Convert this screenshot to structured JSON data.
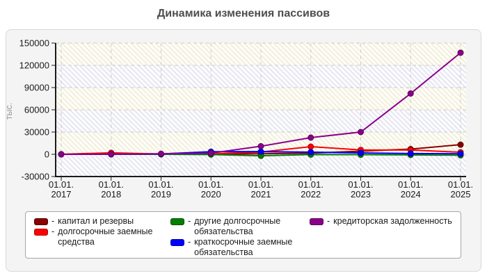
{
  "title": "Динамика изменения пассивов",
  "ui": {
    "legend_dash": "-"
  },
  "chart_data": {
    "type": "line",
    "title": "Динамика изменения пассивов",
    "xlabel": "",
    "ylabel": "тыс.",
    "ylim": [
      -30000,
      150000
    ],
    "y_step": 30000,
    "y_ticks": [
      -30000,
      0,
      30000,
      60000,
      90000,
      120000,
      150000
    ],
    "grid": true,
    "legend_position": "bottom",
    "categories": [
      "01.01.2017",
      "01.01.2018",
      "01.01.2019",
      "01.01.2020",
      "01.01.2021",
      "01.01.2022",
      "01.01.2023",
      "01.01.2024",
      "01.01.2025"
    ],
    "series": [
      {
        "name": "капитал и резервы",
        "color": "#8b0000",
        "border": "#550000",
        "values": [
          0,
          100,
          100,
          200,
          700,
          1500,
          4200,
          7000,
          13000
        ]
      },
      {
        "name": "долгосрочные заемные средства",
        "color": "#ff0000",
        "border": "#aa0000",
        "values": [
          0,
          2000,
          300,
          500,
          3000,
          10300,
          5900,
          5700,
          2800
        ]
      },
      {
        "name": "другие долгосрочные обязательства",
        "color": "#008000",
        "border": "#004d00",
        "values": [
          0,
          0,
          0,
          -300,
          -2000,
          -400,
          -500,
          -800,
          -1300
        ]
      },
      {
        "name": "краткосрочные заемные обязательства",
        "color": "#0000ff",
        "border": "#0000aa",
        "values": [
          0,
          100,
          500,
          3500,
          3600,
          2900,
          1900,
          1000,
          700
        ]
      },
      {
        "name": "кредиторская задолженность",
        "color": "#8b008b",
        "border": "#550055",
        "values": [
          0,
          200,
          700,
          1500,
          10900,
          22500,
          30000,
          82000,
          137000
        ]
      }
    ]
  }
}
